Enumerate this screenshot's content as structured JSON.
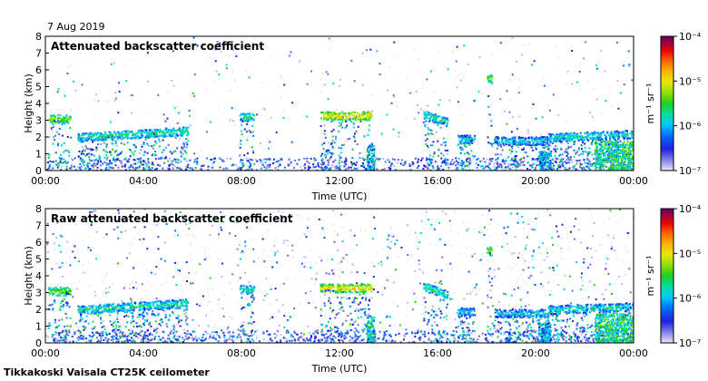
{
  "date_label": "7 Aug 2019",
  "footer": "Tikkakoski Vaisala CT25K ceilometer",
  "colormap": [
    "#e8e8f8",
    "#b8b8f0",
    "#6868e0",
    "#2020e0",
    "#0070ff",
    "#00c8ff",
    "#00e0a0",
    "#20d020",
    "#90e000",
    "#e8e800",
    "#ffb000",
    "#ff6000",
    "#f00000",
    "#a00040",
    "#600060"
  ],
  "chart_data": [
    {
      "type": "heatmap",
      "title": "Attenuated backscatter coefficient",
      "xlabel": "Time (UTC)",
      "ylabel": "Height (km)",
      "xlim": [
        0,
        24
      ],
      "ylim": [
        0,
        8
      ],
      "x_ticks": [
        "00:00",
        "04:00",
        "08:00",
        "12:00",
        "16:00",
        "20:00",
        "00:00"
      ],
      "y_ticks": [
        "0",
        "1",
        "2",
        "3",
        "4",
        "5",
        "6",
        "7",
        "8"
      ],
      "colorbar": {
        "label": "m⁻¹ sr⁻¹",
        "ticks": [
          "10⁻⁴",
          "10⁻⁵",
          "10⁻⁶",
          "10⁻⁷"
        ],
        "range_log10": [
          -7,
          -4
        ]
      },
      "noise_density": 0.3,
      "bands": [
        {
          "t0": 0.1,
          "t1": 1.0,
          "h": 3.1,
          "log": -5.3
        },
        {
          "t0": 1.3,
          "t1": 5.8,
          "h0": 2.0,
          "h1": 2.4,
          "log": -5.6
        },
        {
          "t0": 7.9,
          "t1": 8.5,
          "h": 3.2,
          "log": -5.6
        },
        {
          "t0": 11.2,
          "t1": 13.3,
          "h": 3.3,
          "log": -5.0
        },
        {
          "t0": 15.4,
          "t1": 16.4,
          "h0": 3.4,
          "h1": 2.9,
          "log": -5.6
        },
        {
          "t0": 16.8,
          "t1": 17.5,
          "h": 1.9,
          "log": -5.8
        },
        {
          "t0": 18.0,
          "t1": 18.2,
          "h": 5.5,
          "log": -5.3
        },
        {
          "t0": 18.3,
          "t1": 20.5,
          "h": 1.8,
          "log": -5.8
        },
        {
          "t0": 20.5,
          "t1": 24.0,
          "h0": 2.0,
          "h1": 2.2,
          "log": -5.7
        }
      ],
      "rain": [
        {
          "t0": 13.1,
          "t1": 13.4,
          "h": 1.6,
          "log": -5.5
        },
        {
          "t0": 20.1,
          "t1": 20.6,
          "h": 1.2,
          "log": -5.6
        },
        {
          "t0": 22.4,
          "t1": 24.0,
          "h": 1.8,
          "log": -5.3
        }
      ]
    },
    {
      "type": "heatmap",
      "title": "Raw attenuated backscatter coefficient",
      "xlabel": "Time (UTC)",
      "ylabel": "Height (km)",
      "xlim": [
        0,
        24
      ],
      "ylim": [
        0,
        8
      ],
      "x_ticks": [
        "00:00",
        "04:00",
        "08:00",
        "12:00",
        "16:00",
        "20:00",
        "00:00"
      ],
      "y_ticks": [
        "0",
        "1",
        "2",
        "3",
        "4",
        "5",
        "6",
        "7",
        "8"
      ],
      "colorbar": {
        "label": "m⁻¹ sr⁻¹",
        "ticks": [
          "10⁻⁴",
          "10⁻⁵",
          "10⁻⁶",
          "10⁻⁷"
        ],
        "range_log10": [
          -7,
          -4
        ]
      },
      "noise_density": 0.8,
      "bands": [
        {
          "t0": 0.1,
          "t1": 1.0,
          "h": 3.1,
          "log": -5.3
        },
        {
          "t0": 1.3,
          "t1": 5.8,
          "h0": 2.0,
          "h1": 2.4,
          "log": -5.6
        },
        {
          "t0": 7.9,
          "t1": 8.5,
          "h": 3.2,
          "log": -5.6
        },
        {
          "t0": 11.2,
          "t1": 13.3,
          "h": 3.3,
          "log": -5.0
        },
        {
          "t0": 15.4,
          "t1": 16.4,
          "h0": 3.4,
          "h1": 2.9,
          "log": -5.6
        },
        {
          "t0": 16.8,
          "t1": 17.5,
          "h": 1.9,
          "log": -5.8
        },
        {
          "t0": 18.0,
          "t1": 18.2,
          "h": 5.5,
          "log": -5.3
        },
        {
          "t0": 18.3,
          "t1": 20.5,
          "h": 1.8,
          "log": -5.8
        },
        {
          "t0": 20.5,
          "t1": 24.0,
          "h0": 2.0,
          "h1": 2.2,
          "log": -5.7
        }
      ],
      "rain": [
        {
          "t0": 13.1,
          "t1": 13.4,
          "h": 1.6,
          "log": -5.5
        },
        {
          "t0": 20.1,
          "t1": 20.6,
          "h": 1.2,
          "log": -5.6
        },
        {
          "t0": 22.4,
          "t1": 24.0,
          "h": 1.8,
          "log": -5.3
        }
      ]
    }
  ]
}
